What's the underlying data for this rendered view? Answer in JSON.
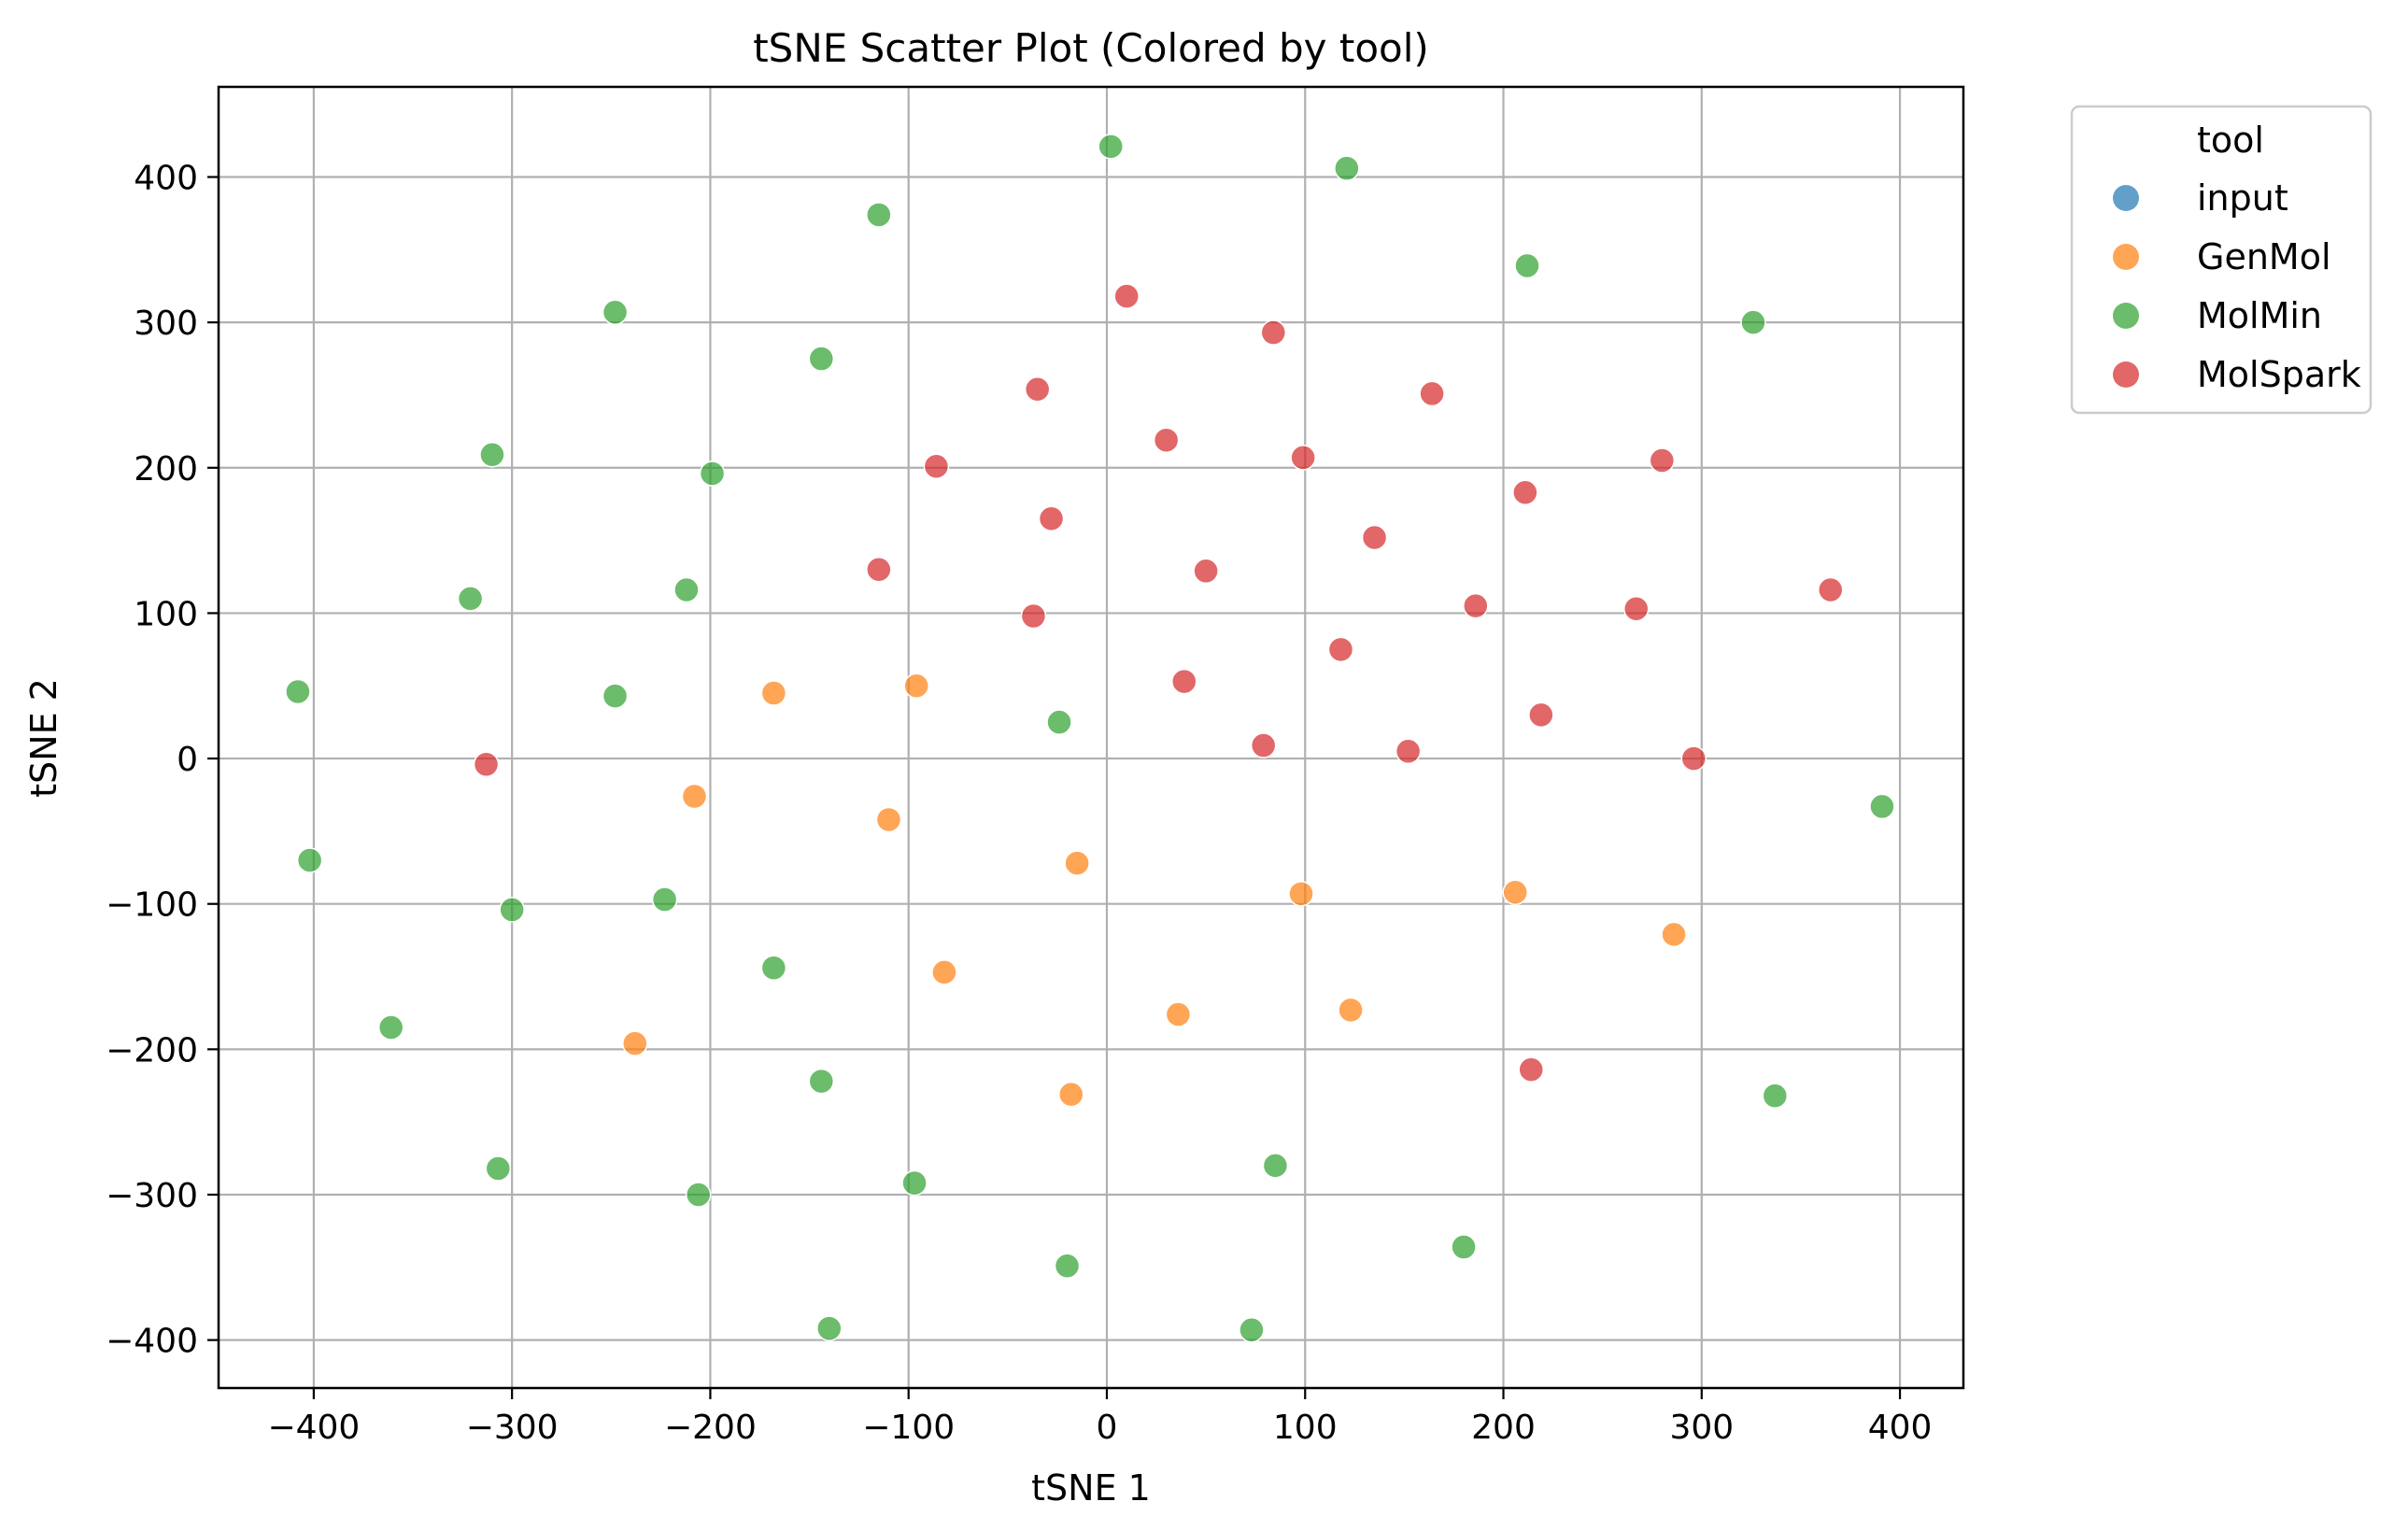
{
  "chart_data": {
    "type": "scatter",
    "title": "tSNE Scatter Plot (Colored by tool)",
    "xlabel": "tSNE 1",
    "ylabel": "tSNE 2",
    "xlim": [
      -448,
      432
    ],
    "ylim": [
      -433,
      462
    ],
    "xticks": [
      -400,
      -300,
      -200,
      -100,
      0,
      100,
      200,
      300,
      400
    ],
    "yticks": [
      -400,
      -300,
      -200,
      -100,
      0,
      100,
      200,
      300,
      400
    ],
    "xtick_labels": [
      "−400",
      "−300",
      "−200",
      "−100",
      "0",
      "100",
      "200",
      "300",
      "400"
    ],
    "ytick_labels": [
      "−400",
      "−300",
      "−200",
      "−100",
      "0",
      "100",
      "200",
      "300",
      "400"
    ],
    "grid": true,
    "legend": {
      "title": "tool",
      "placement": "outside-top-right"
    },
    "series": [
      {
        "name": "input",
        "color": "#1f77b4",
        "points": []
      },
      {
        "name": "GenMol",
        "color": "#ff7f0e",
        "points": [
          [
            -168,
            45
          ],
          [
            -96,
            50
          ],
          [
            -208,
            -26
          ],
          [
            -110,
            -42
          ],
          [
            -15,
            -72
          ],
          [
            -82,
            -147
          ],
          [
            98,
            -93
          ],
          [
            206,
            -92
          ],
          [
            286,
            -121
          ],
          [
            36,
            -176
          ],
          [
            123,
            -173
          ],
          [
            -238,
            -196
          ],
          [
            -18,
            -231
          ]
        ]
      },
      {
        "name": "MolMin",
        "color": "#2ca02c",
        "points": [
          [
            2,
            421
          ],
          [
            121,
            406
          ],
          [
            -115,
            374
          ],
          [
            212,
            339
          ],
          [
            -248,
            307
          ],
          [
            326,
            300
          ],
          [
            -144,
            275
          ],
          [
            -310,
            209
          ],
          [
            -199,
            196
          ],
          [
            -321,
            110
          ],
          [
            -212,
            116
          ],
          [
            -408,
            46
          ],
          [
            -248,
            43
          ],
          [
            -24,
            25
          ],
          [
            391,
            -33
          ],
          [
            -402,
            -70
          ],
          [
            -223,
            -97
          ],
          [
            -300,
            -104
          ],
          [
            -168,
            -144
          ],
          [
            -361,
            -185
          ],
          [
            -144,
            -222
          ],
          [
            337,
            -232
          ],
          [
            -307,
            -282
          ],
          [
            -206,
            -300
          ],
          [
            -97,
            -292
          ],
          [
            85,
            -280
          ],
          [
            180,
            -336
          ],
          [
            -20,
            -349
          ],
          [
            -140,
            -392
          ],
          [
            73,
            -393
          ]
        ]
      },
      {
        "name": "MolSpark",
        "color": "#d62728",
        "points": [
          [
            10,
            318
          ],
          [
            84,
            293
          ],
          [
            -35,
            254
          ],
          [
            164,
            251
          ],
          [
            30,
            219
          ],
          [
            -86,
            201
          ],
          [
            99,
            207
          ],
          [
            280,
            205
          ],
          [
            211,
            183
          ],
          [
            -28,
            165
          ],
          [
            135,
            152
          ],
          [
            -115,
            130
          ],
          [
            50,
            129
          ],
          [
            -37,
            98
          ],
          [
            186,
            105
          ],
          [
            267,
            103
          ],
          [
            365,
            116
          ],
          [
            118,
            75
          ],
          [
            39,
            53
          ],
          [
            219,
            30
          ],
          [
            79,
            9
          ],
          [
            152,
            5
          ],
          [
            296,
            0
          ],
          [
            -313,
            -4
          ],
          [
            214,
            -214
          ]
        ]
      }
    ]
  }
}
